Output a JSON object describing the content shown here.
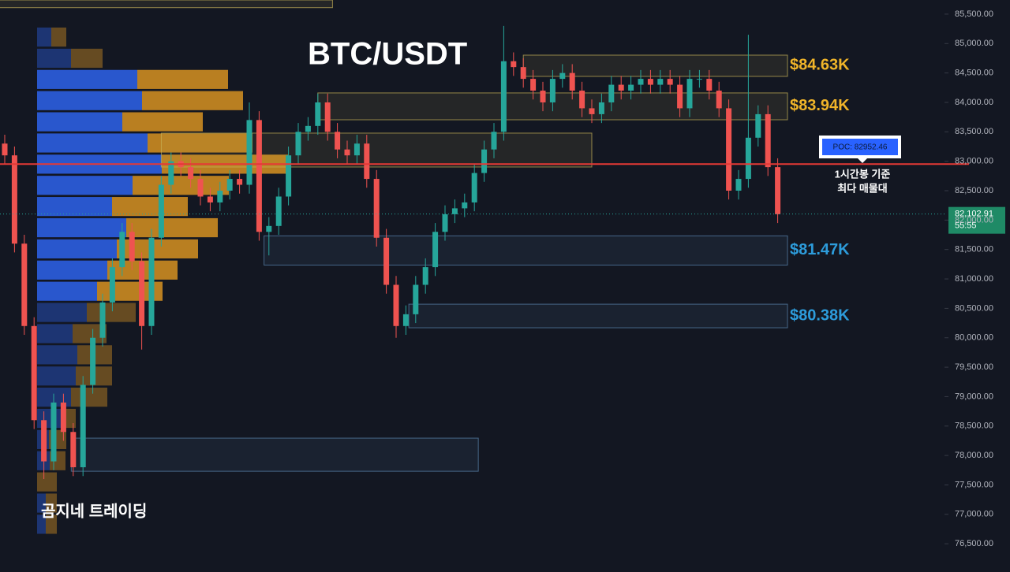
{
  "chart_data": {
    "type": "candlestick",
    "title": "BTC/USDT",
    "watermark": "곰지네 트레이딩",
    "note": [
      "1시간봉 기준",
      "최다 매물대"
    ],
    "up_color": "#26a69a",
    "down_color": "#ef5350",
    "ylim": [
      76020,
      85740
    ],
    "yticks": [
      {
        "value": 76500,
        "label": "76,500.00"
      },
      {
        "value": 77000,
        "label": "77,000.00"
      },
      {
        "value": 77500,
        "label": "77,500.00"
      },
      {
        "value": 78000,
        "label": "78,000.00"
      },
      {
        "value": 78500,
        "label": "78,500.00"
      },
      {
        "value": 79000,
        "label": "79,000.00"
      },
      {
        "value": 79500,
        "label": "79,500.00"
      },
      {
        "value": 80000,
        "label": "80,000.00"
      },
      {
        "value": 80500,
        "label": "80,500.00"
      },
      {
        "value": 81000,
        "label": "81,000.00"
      },
      {
        "value": 81500,
        "label": "81,500.00"
      },
      {
        "value": 82000,
        "label": "82,000.00"
      },
      {
        "value": 82500,
        "label": "82,500.00"
      },
      {
        "value": 83000,
        "label": "83,000.00"
      },
      {
        "value": 83500,
        "label": "83,500.00"
      },
      {
        "value": 84000,
        "label": "84,000.00"
      },
      {
        "value": 84500,
        "label": "84,500.00"
      },
      {
        "value": 85000,
        "label": "85,000.00"
      },
      {
        "value": 85500,
        "label": "85,500.00"
      }
    ],
    "open": [
      83300,
      83100,
      81600,
      80200,
      78600,
      77900,
      78900,
      78400,
      77800,
      79200,
      80000,
      80600,
      81200,
      81800,
      81300,
      80200,
      81700,
      82600,
      83000,
      82900,
      82700,
      82400,
      82300,
      82500,
      82700,
      82600,
      83700,
      81800,
      81900,
      82400,
      83100,
      83500,
      83600,
      84000,
      83500,
      83200,
      83100,
      83300,
      82700,
      81700,
      80900,
      80200,
      80400,
      80900,
      81200,
      81800,
      82100,
      82200,
      82300,
      82800,
      83200,
      83500,
      84700,
      84600,
      84400,
      84200,
      84000,
      84400,
      84500,
      84200,
      83900,
      83800,
      84000,
      84300,
      84200,
      84300,
      84400,
      84300,
      84400,
      84300,
      83900,
      84400,
      84400,
      84200,
      83900,
      82500,
      82700,
      83400,
      83800,
      82900
    ],
    "high": [
      83450,
      83250,
      81750,
      80350,
      78750,
      79050,
      79050,
      78550,
      79350,
      80150,
      80750,
      81350,
      81950,
      81950,
      81450,
      81850,
      82750,
      83150,
      83150,
      83050,
      82850,
      82550,
      82650,
      82850,
      82850,
      84000,
      83850,
      82050,
      82550,
      83250,
      83650,
      83750,
      84150,
      84150,
      83650,
      83350,
      83450,
      83450,
      82850,
      81850,
      81050,
      80550,
      81050,
      81350,
      81950,
      82250,
      82350,
      82450,
      82950,
      83350,
      83650,
      85300,
      84850,
      84750,
      84550,
      84350,
      84550,
      84650,
      84650,
      84350,
      84050,
      84150,
      84450,
      84450,
      84450,
      84550,
      84550,
      84550,
      84550,
      84450,
      84550,
      84550,
      84550,
      84350,
      84050,
      82850,
      85150,
      83950,
      83950,
      83050
    ],
    "low": [
      82950,
      81450,
      80050,
      78450,
      77600,
      77750,
      78250,
      77650,
      77650,
      79050,
      79850,
      80450,
      81050,
      81150,
      79800,
      80050,
      81550,
      82450,
      82750,
      82550,
      82250,
      82150,
      82150,
      82350,
      82450,
      82450,
      81650,
      81400,
      81750,
      82250,
      82950,
      83350,
      83450,
      83350,
      83050,
      82950,
      82950,
      82550,
      81550,
      80750,
      80000,
      80050,
      80250,
      80750,
      81050,
      81650,
      81950,
      82050,
      82150,
      82650,
      83050,
      83350,
      84450,
      84250,
      84050,
      83850,
      83850,
      84250,
      84050,
      83750,
      83650,
      83650,
      83850,
      84050,
      84050,
      84150,
      84150,
      84150,
      84150,
      83750,
      83750,
      84250,
      84050,
      83750,
      82350,
      82350,
      82550,
      83250,
      82750,
      81950
    ],
    "close": [
      83100,
      81600,
      80200,
      78600,
      77900,
      78900,
      78400,
      77800,
      79200,
      80000,
      80600,
      81200,
      81800,
      81300,
      80200,
      81700,
      82600,
      83000,
      82900,
      82700,
      82400,
      82300,
      82500,
      82700,
      82600,
      83700,
      81800,
      81900,
      82400,
      83100,
      83500,
      83600,
      84000,
      83500,
      83200,
      83100,
      83300,
      82700,
      81700,
      80900,
      80200,
      80400,
      80900,
      81200,
      81800,
      82100,
      82200,
      82300,
      82800,
      83200,
      83500,
      84700,
      84600,
      84400,
      84200,
      84000,
      84400,
      84500,
      84200,
      83900,
      83800,
      84000,
      84300,
      84200,
      84300,
      84400,
      84300,
      84400,
      84300,
      83900,
      84400,
      84400,
      84200,
      83900,
      82500,
      82700,
      83400,
      83800,
      82900,
      82100
    ],
    "zones": [
      {
        "top": 85740,
        "bottom": 85610,
        "start": -1,
        "end": 33.5,
        "color": "#c9b458"
      },
      {
        "top": 84803,
        "bottom": 84442,
        "start": 53,
        "end": 80,
        "color": "#c9b458",
        "label": "$84.63K",
        "label_color": "#f0b429"
      },
      {
        "top": 84161,
        "bottom": 83705,
        "start": 32,
        "end": 80,
        "color": "#c9b458",
        "label": "$83.94K",
        "label_color": "#f0b429"
      },
      {
        "top": 83478,
        "bottom": 82902,
        "start": 16,
        "end": 60,
        "color": "#c9b458"
      },
      {
        "top": 81732,
        "bottom": 81236,
        "start": 26.5,
        "end": 80,
        "color": "#5a86b0",
        "label": "$81.47K",
        "label_color": "#2d9cdb"
      },
      {
        "top": 80571,
        "bottom": 80170,
        "start": 41.3,
        "end": 80,
        "color": "#5a86b0",
        "label": "$80.38K",
        "label_color": "#2d9cdb"
      },
      {
        "top": 78295,
        "bottom": 77732,
        "start": 6.8,
        "end": 48.4,
        "color": "#5a86b0"
      }
    ],
    "poc": {
      "value": 82952.46,
      "label": "POC: 82952.46"
    },
    "last_price": {
      "value": 82102.91,
      "label": "82,102.91"
    },
    "countdown": "55:55",
    "profile": {
      "price_range": [
        76633,
        85272
      ],
      "buy": [
        18,
        43,
        127,
        133,
        108,
        140,
        158,
        121,
        95,
        113,
        101,
        89,
        76,
        63,
        45,
        51,
        49,
        43,
        35,
        15,
        16,
        0,
        11,
        11
      ],
      "sell": [
        19,
        40,
        115,
        128,
        102,
        133,
        160,
        122,
        96,
        116,
        103,
        89,
        83,
        62,
        43,
        44,
        46,
        46,
        14,
        22,
        20,
        25,
        14,
        14
      ],
      "value_area": [
        2,
        12
      ],
      "buy_color": "#2a5bd7",
      "sell_color": "#e39a22"
    }
  }
}
